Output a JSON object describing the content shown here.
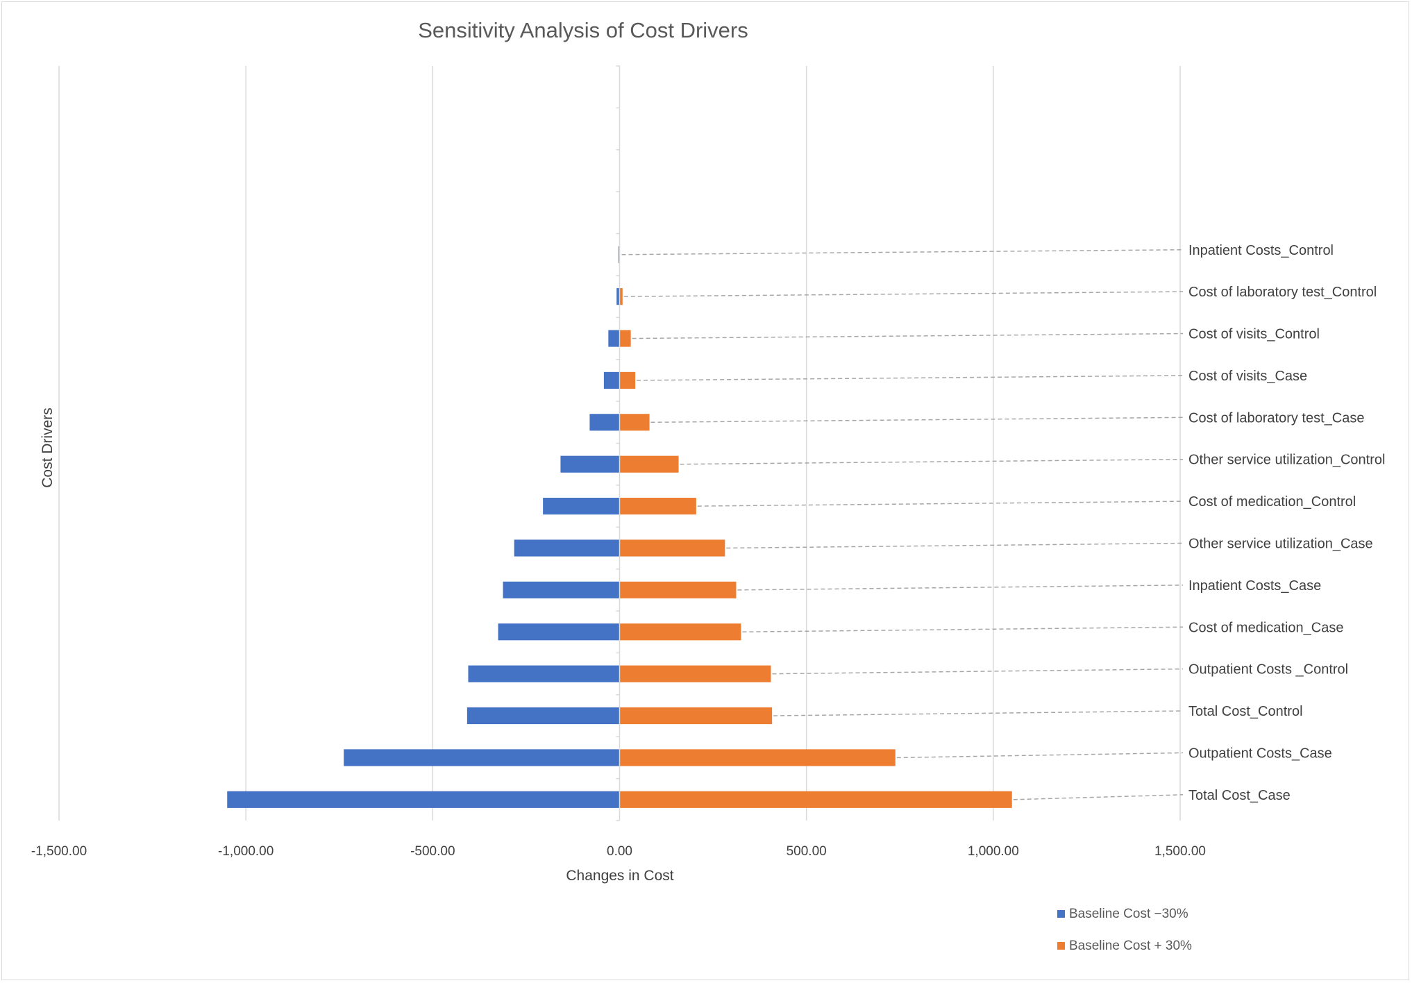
{
  "chart_data": {
    "type": "bar",
    "orientation": "horizontal",
    "variant": "tornado",
    "title": "Sensitivity Analysis of Cost Drivers",
    "xlabel": "Changes in Cost",
    "ylabel": "Cost Drivers",
    "xlim": [
      -1500,
      1500
    ],
    "xticks": [
      -1500,
      -1000,
      -500,
      0,
      500,
      1000,
      1500
    ],
    "xtick_labels": [
      "-1,500.00",
      "-1,000.00",
      "-500.00",
      "0.00",
      "500.00",
      "1,000.00",
      "1,500.00"
    ],
    "grid": true,
    "legend_position": "bottom-right",
    "empty_category_slots_at_top": 4,
    "categories": [
      "Inpatient Costs_Control",
      "Cost of laboratory test_Control",
      "Cost of visits_Control",
      "Cost of visits_Case",
      "Cost of laboratory test_Case",
      "Other service utilization_Control",
      "Cost of medication_Control",
      "Other service utilization_Case",
      "Inpatient Costs_Case",
      "Cost of medication_Case",
      "Outpatient Costs _Control",
      "Total Cost_Control",
      "Outpatient Costs_Case",
      "Total Cost_Case"
    ],
    "series": [
      {
        "name": "Baseline Cost −30%",
        "color": "#4472C4",
        "values": [
          -3,
          -8,
          -30,
          -42,
          -80,
          -158,
          -205,
          -282,
          -312,
          -325,
          -405,
          -408,
          -738,
          -1050
        ]
      },
      {
        "name": "Baseline Cost + 30%",
        "color": "#ED7D31",
        "values": [
          0,
          8,
          30,
          42,
          80,
          158,
          205,
          282,
          312,
          325,
          405,
          408,
          738,
          1050
        ]
      }
    ]
  }
}
